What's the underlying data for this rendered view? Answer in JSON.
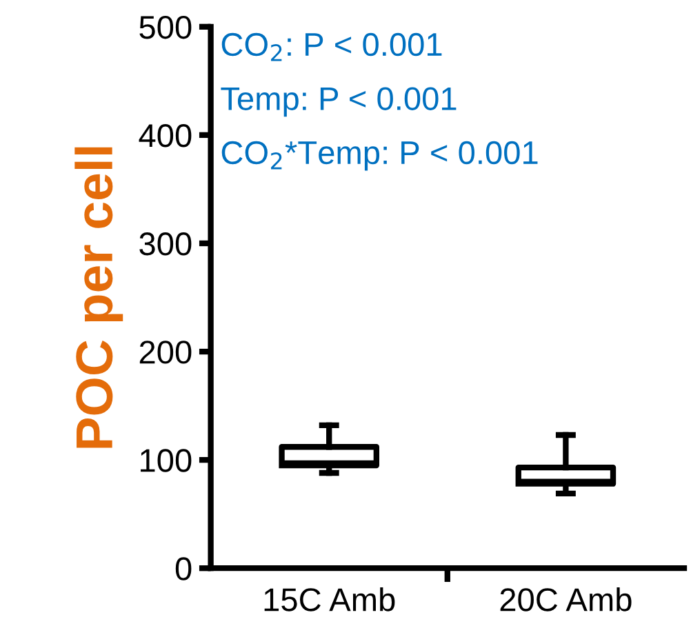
{
  "chart_data": {
    "type": "box",
    "ylabel": "POC per cell",
    "categories": [
      "15C Amb",
      "20C Amb"
    ],
    "boxes": [
      {
        "low": 88,
        "q1": 95,
        "median": 97,
        "q3": 112,
        "high": 132
      },
      {
        "low": 69,
        "q1": 78,
        "median": 80,
        "q3": 93,
        "high": 123
      }
    ],
    "ylim": [
      0,
      500
    ],
    "yticks": [
      0,
      100,
      200,
      300,
      400,
      500
    ],
    "grid": false,
    "annotations": [
      "CO$_{2}$: P < 0.001",
      "Temp: P < 0.001",
      "CO$_{2}$*Temp: P < 0.001"
    ]
  }
}
